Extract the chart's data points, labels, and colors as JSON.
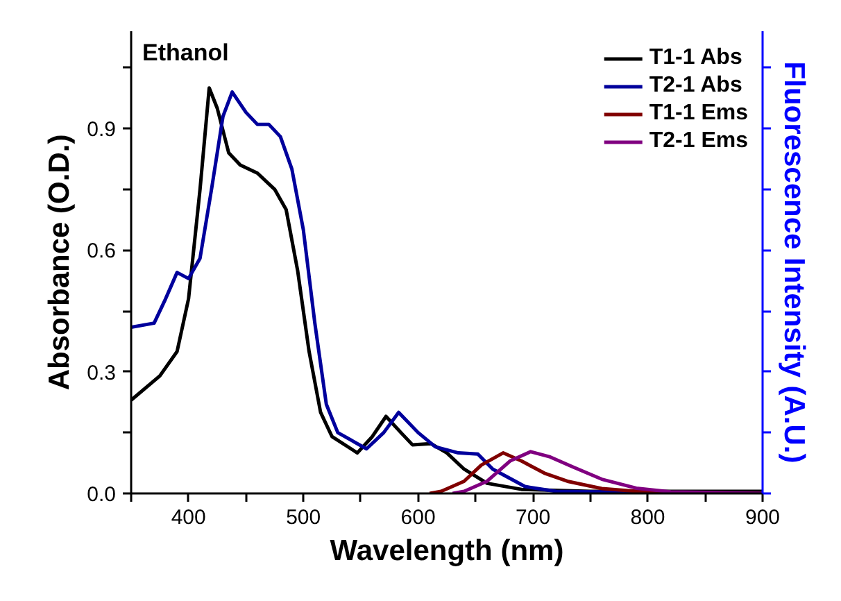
{
  "chart_data": {
    "type": "line",
    "annotations": [
      "Ethanol"
    ],
    "xlabel": "Wavelength (nm)",
    "ylabel": "Absorbance (O.D.)",
    "y2label": "Fluorescence Intensity (A.U.)",
    "xlim": [
      350,
      900
    ],
    "ylim": [
      0,
      1.14
    ],
    "xticks": [
      {
        "value": 350,
        "label": null
      },
      400,
      {
        "value": 450,
        "label": null
      },
      500,
      {
        "value": 550,
        "label": null
      },
      600,
      {
        "value": 650,
        "label": null
      },
      700,
      {
        "value": 750,
        "label": null
      },
      800,
      {
        "value": 850,
        "label": null
      },
      900
    ],
    "yticks": [
      {
        "value": 0,
        "label": "0.0"
      },
      {
        "value": 0.15,
        "label": null
      },
      {
        "value": 0.3,
        "label": "0.3"
      },
      {
        "value": 0.45,
        "label": null
      },
      {
        "value": 0.6,
        "label": "0.6"
      },
      {
        "value": 0.75,
        "label": null
      },
      {
        "value": 0.9,
        "label": "0.9"
      },
      {
        "value": 1.05,
        "label": null
      }
    ],
    "legend": "top right",
    "grid": false,
    "series": [
      {
        "name": "T1-1 Abs",
        "color": "#000000",
        "x": [
          350,
          375,
          390,
          400,
          410,
          418,
          425,
          435,
          445,
          460,
          475,
          485,
          495,
          505,
          515,
          525,
          547,
          560,
          572,
          585,
          595,
          611,
          625,
          640,
          660,
          690,
          750,
          900
        ],
        "values": [
          0.23,
          0.29,
          0.35,
          0.48,
          0.75,
          1.0,
          0.95,
          0.84,
          0.81,
          0.79,
          0.75,
          0.7,
          0.55,
          0.35,
          0.2,
          0.14,
          0.1,
          0.14,
          0.19,
          0.15,
          0.12,
          0.123,
          0.1,
          0.06,
          0.025,
          0.01,
          0.005,
          0.005
        ]
      },
      {
        "name": "T2-1 Abs",
        "color": "#00009c",
        "x": [
          350,
          370,
          380,
          390,
          400,
          410,
          420,
          430,
          438,
          450,
          460,
          470,
          480,
          490,
          500,
          510,
          520,
          530,
          555,
          570,
          583,
          600,
          615,
          635,
          652,
          665,
          693,
          720,
          900
        ],
        "values": [
          0.41,
          0.42,
          0.48,
          0.545,
          0.53,
          0.58,
          0.75,
          0.93,
          0.99,
          0.94,
          0.91,
          0.91,
          0.88,
          0.8,
          0.65,
          0.42,
          0.22,
          0.15,
          0.11,
          0.15,
          0.2,
          0.15,
          0.115,
          0.1,
          0.097,
          0.06,
          0.017,
          0.005,
          0.0
        ]
      },
      {
        "name": "T1-1 Ems",
        "color": "#800000",
        "x": [
          610,
          620,
          640,
          655,
          674,
          690,
          710,
          730,
          760,
          800,
          900
        ],
        "values": [
          0.0,
          0.005,
          0.03,
          0.07,
          0.1,
          0.08,
          0.05,
          0.03,
          0.012,
          0.003,
          0.0
        ]
      },
      {
        "name": "T2-1 Ems",
        "color": "#800080",
        "x": [
          630,
          640,
          660,
          680,
          698,
          715,
          735,
          760,
          790,
          820,
          900
        ],
        "values": [
          0.0,
          0.005,
          0.03,
          0.08,
          0.103,
          0.09,
          0.065,
          0.035,
          0.013,
          0.004,
          0.0
        ]
      }
    ]
  }
}
